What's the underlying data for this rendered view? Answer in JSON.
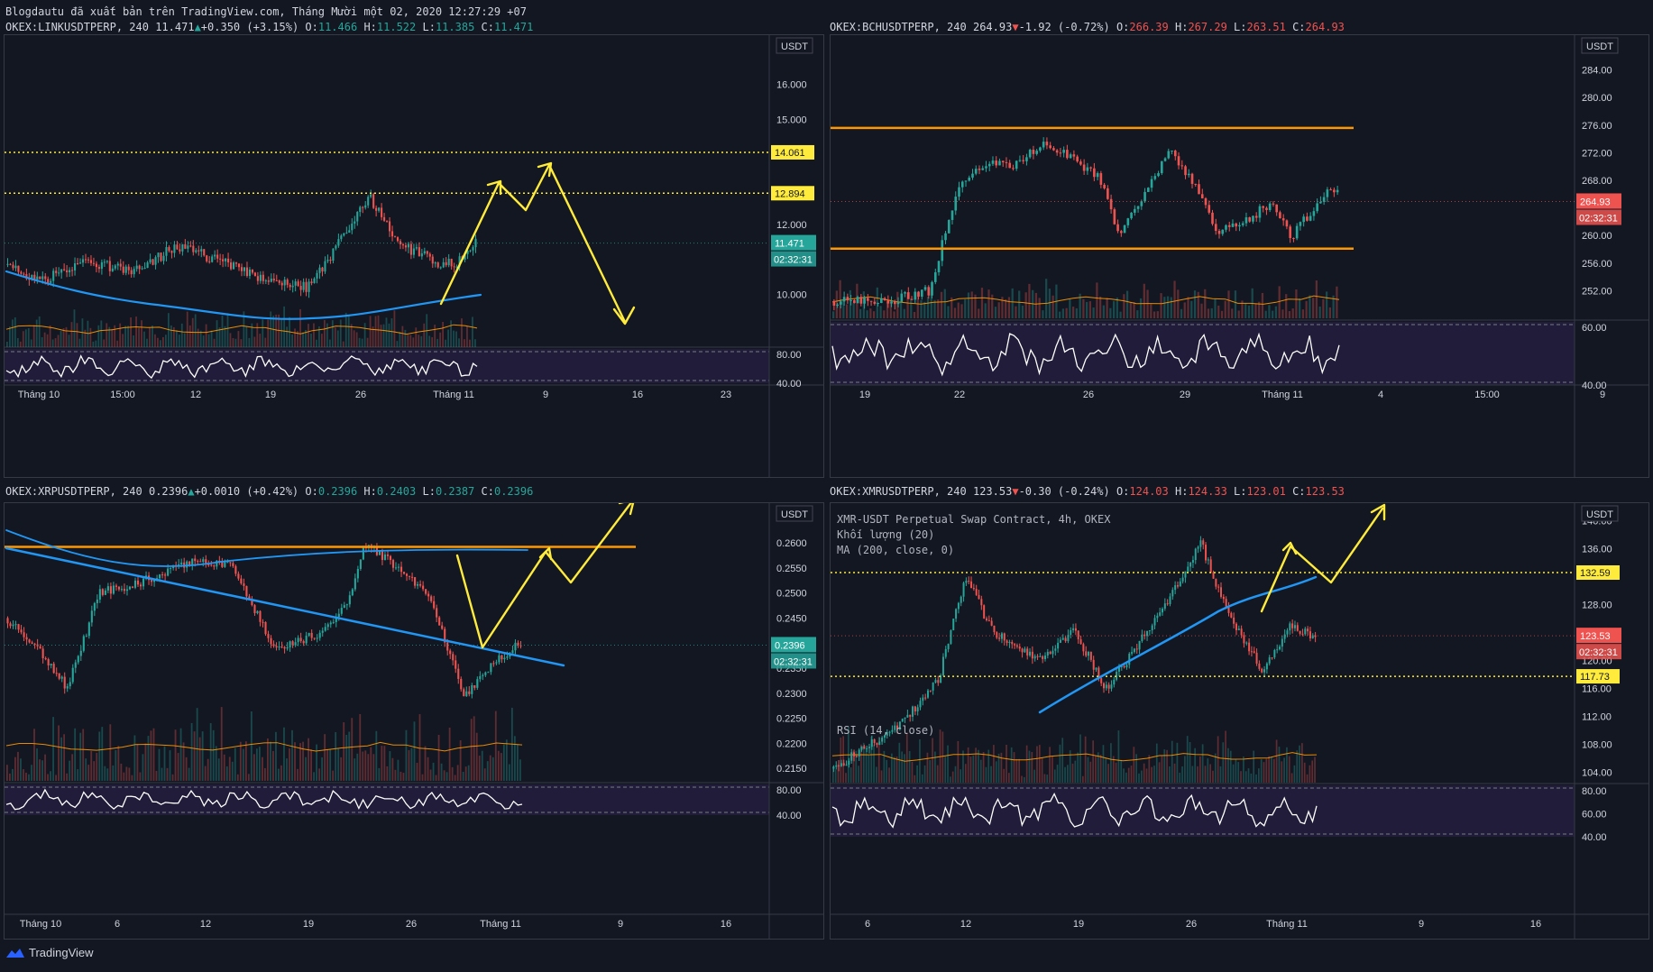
{
  "caption": "Blogdautu đã xuất bản trên TradingView.com, Tháng Mười một 02, 2020 12:27:29 +07",
  "brand": "TradingView",
  "colors": {
    "bg": "#131722",
    "up": "#26a69a",
    "down": "#ef5350",
    "ma": "#2196f3",
    "annot": "#ffeb3b",
    "line": "#ff9800",
    "rsi_bg": "#2a1f4a"
  },
  "chart_data": [
    {
      "id": "link",
      "type": "candlestick",
      "header": {
        "symbol": "OKEX:LINKUSDTPERP",
        "tf": "240",
        "last": "11.471",
        "change": "+0.350 (+3.15%)",
        "dir": "up",
        "o": "11.466",
        "h": "11.522",
        "l": "11.385",
        "c": "11.471"
      },
      "unit": "USDT",
      "ylim": [
        8.5,
        17.2
      ],
      "yticks": [
        "16.000",
        "15.000",
        "12.000",
        "10.000"
      ],
      "top_partial_tick": "17.000",
      "xticks": [
        "Tháng 10",
        "15:00",
        "12",
        "19",
        "26",
        "Tháng 11",
        "9",
        "16",
        "23"
      ],
      "rsi_ticks": [
        "80.00",
        "40.00"
      ],
      "levels": [
        {
          "value": 14.061,
          "label": "14.061",
          "style": "dotted-yellow"
        },
        {
          "value": 12.894,
          "label": "12.894",
          "style": "dotted-yellow"
        }
      ],
      "price_label": {
        "value": "11.471",
        "countdown": "02:32:31"
      }
    },
    {
      "id": "bch",
      "type": "candlestick",
      "header": {
        "symbol": "OKEX:BCHUSDTPERP",
        "tf": "240",
        "last": "264.93",
        "change": "-1.92 (-0.72%)",
        "dir": "down",
        "o": "266.39",
        "h": "267.29",
        "l": "263.51",
        "c": "264.93"
      },
      "unit": "USDT",
      "ylim": [
        248,
        288
      ],
      "yticks": [
        "284.00",
        "280.00",
        "276.00",
        "272.00",
        "268.00",
        "260.00",
        "256.00",
        "252.00"
      ],
      "top_partial_tick": "288.00",
      "xticks": [
        "19",
        "22",
        "26",
        "29",
        "Tháng 11",
        "4",
        "15:00",
        "9"
      ],
      "rsi_ticks": [
        "60.00",
        "40.00"
      ],
      "levels": [
        {
          "value": 275.6,
          "style": "solid-orange"
        },
        {
          "value": 258.1,
          "style": "solid-orange"
        }
      ],
      "price_label": {
        "value": "264.93",
        "countdown": "02:32:31"
      }
    },
    {
      "id": "xrp",
      "type": "candlestick",
      "header": {
        "symbol": "OKEX:XRPUSDTPERP",
        "tf": "240",
        "last": "0.2396",
        "change": "+0.0010 (+0.42%)",
        "dir": "up",
        "o": "0.2396",
        "h": "0.2403",
        "l": "0.2387",
        "c": "0.2396"
      },
      "unit": "USDT",
      "ylim": [
        0.2125,
        0.2665
      ],
      "yticks": [
        "0.2650",
        "0.2600",
        "0.2550",
        "0.2500",
        "0.2450",
        "0.2350",
        "0.2300",
        "0.2250",
        "0.2200",
        "0.2150"
      ],
      "xticks": [
        "Tháng 10",
        "6",
        "12",
        "19",
        "26",
        "Tháng 11",
        "9",
        "16"
      ],
      "rsi_ticks": [
        "80.00",
        "40.00"
      ],
      "levels": [
        {
          "value": 0.2592,
          "style": "solid-orange"
        }
      ],
      "price_label": {
        "value": "0.2396",
        "countdown": "02:32:31"
      }
    },
    {
      "id": "xmr",
      "type": "candlestick",
      "header": {
        "symbol": "OKEX:XMRUSDTPERP",
        "tf": "240",
        "last": "123.53",
        "change": "-0.30 (-0.24%)",
        "dir": "down",
        "o": "124.03",
        "h": "124.33",
        "l": "123.01",
        "c": "123.53"
      },
      "unit": "USDT",
      "info": [
        "XMR-USDT Perpetual Swap Contract, 4h, OKEX",
        "Khối lượng (20)",
        "MA (200, close, 0)"
      ],
      "rsi_label": "RSI (14, close)",
      "ylim": [
        102.5,
        141.5
      ],
      "yticks": [
        "140.00",
        "136.00",
        "128.00",
        "120.00",
        "116.00",
        "112.00",
        "108.00",
        "104.00"
      ],
      "xticks": [
        "6",
        "12",
        "19",
        "26",
        "Tháng 11",
        "9",
        "16"
      ],
      "rsi_ticks": [
        "80.00",
        "60.00",
        "40.00"
      ],
      "levels": [
        {
          "value": 132.59,
          "label": "132.59",
          "style": "dotted-yellow"
        },
        {
          "value": 117.73,
          "label": "117.73",
          "style": "dotted-yellow"
        }
      ],
      "price_label": {
        "value": "123.53",
        "countdown": "02:32:31"
      }
    }
  ]
}
